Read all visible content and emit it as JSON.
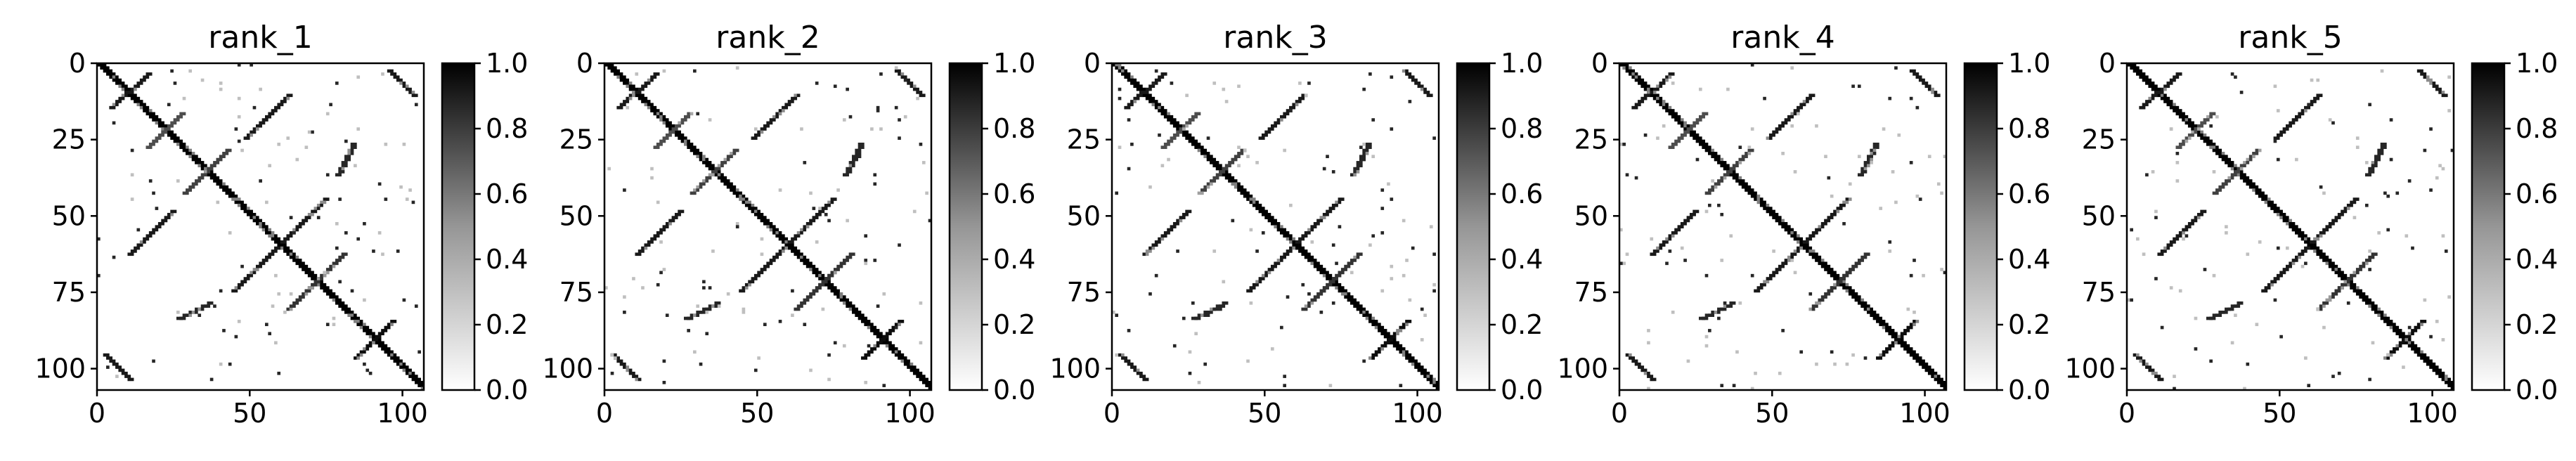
{
  "chart_data": [
    {
      "type": "heatmap",
      "title": "rank_1",
      "matrix_size": 107,
      "xlim": [
        0,
        107
      ],
      "ylim": [
        107,
        0
      ],
      "xticks": [
        0,
        50,
        100
      ],
      "yticks": [
        0,
        25,
        50,
        75,
        100
      ],
      "colorbar": {
        "min": 0.0,
        "max": 1.0,
        "ticks": [
          "0.0",
          "0.2",
          "0.4",
          "0.6",
          "0.8",
          "1.0"
        ],
        "colormap": "Greys"
      },
      "contact_bands": [
        {
          "from": [
            0,
            0
          ],
          "to": [
            106,
            106
          ],
          "value": 1.0
        },
        {
          "from": [
            3,
            16
          ],
          "to": [
            14,
            4
          ],
          "value": 0.9
        },
        {
          "from": [
            16,
            27
          ],
          "to": [
            27,
            16
          ],
          "value": 0.7
        },
        {
          "from": [
            28,
            42
          ],
          "to": [
            42,
            28
          ],
          "value": 0.75
        },
        {
          "from": [
            2,
            95
          ],
          "to": [
            10,
            103
          ],
          "value": 0.9
        },
        {
          "from": [
            10,
            62
          ],
          "to": [
            24,
            48
          ],
          "value": 0.9
        },
        {
          "from": [
            44,
            74
          ],
          "to": [
            58,
            60
          ],
          "value": 0.9
        },
        {
          "from": [
            62,
            80
          ],
          "to": [
            74,
            68
          ],
          "value": 0.8
        },
        {
          "from": [
            26,
            83
          ],
          "to": [
            36,
            78
          ],
          "value": 0.85
        },
        {
          "from": [
            84,
            96
          ],
          "to": [
            96,
            84
          ],
          "value": 0.95
        },
        {
          "from": [
            60,
            104
          ],
          "to": [
            106,
            92
          ],
          "value": 0.0
        },
        {
          "from": [
            95,
            2
          ],
          "to": [
            103,
            10
          ],
          "value": 0.9
        },
        {
          "from": [
            62,
            10
          ],
          "to": [
            48,
            24
          ],
          "value": 0.9
        },
        {
          "from": [
            74,
            44
          ],
          "to": [
            60,
            58
          ],
          "value": 0.9
        },
        {
          "from": [
            80,
            62
          ],
          "to": [
            68,
            74
          ],
          "value": 0.8
        },
        {
          "from": [
            83,
            26
          ],
          "to": [
            78,
            36
          ],
          "value": 0.85
        },
        {
          "from": [
            90,
            72
          ],
          "to": [
            106,
            88
          ],
          "value": 0.0
        }
      ]
    },
    {
      "type": "heatmap",
      "title": "rank_2",
      "matrix_size": 107,
      "xlim": [
        0,
        107
      ],
      "ylim": [
        107,
        0
      ],
      "xticks": [
        0,
        50,
        100
      ],
      "yticks": [
        0,
        25,
        50,
        75,
        100
      ],
      "colorbar": {
        "min": 0.0,
        "max": 1.0,
        "ticks": [
          "0.0",
          "0.2",
          "0.4",
          "0.6",
          "0.8",
          "1.0"
        ],
        "colormap": "Greys"
      }
    },
    {
      "type": "heatmap",
      "title": "rank_3",
      "matrix_size": 107,
      "xlim": [
        0,
        107
      ],
      "ylim": [
        107,
        0
      ],
      "xticks": [
        0,
        50,
        100
      ],
      "yticks": [
        0,
        25,
        50,
        75,
        100
      ],
      "colorbar": {
        "min": 0.0,
        "max": 1.0,
        "ticks": [
          "0.0",
          "0.2",
          "0.4",
          "0.6",
          "0.8",
          "1.0"
        ],
        "colormap": "Greys"
      }
    },
    {
      "type": "heatmap",
      "title": "rank_4",
      "matrix_size": 107,
      "xlim": [
        0,
        107
      ],
      "ylim": [
        107,
        0
      ],
      "xticks": [
        0,
        50,
        100
      ],
      "yticks": [
        0,
        25,
        50,
        75,
        100
      ],
      "colorbar": {
        "min": 0.0,
        "max": 1.0,
        "ticks": [
          "0.0",
          "0.2",
          "0.4",
          "0.6",
          "0.8",
          "1.0"
        ],
        "colormap": "Greys"
      }
    },
    {
      "type": "heatmap",
      "title": "rank_5",
      "matrix_size": 107,
      "xlim": [
        0,
        107
      ],
      "ylim": [
        107,
        0
      ],
      "xticks": [
        0,
        50,
        100
      ],
      "yticks": [
        0,
        25,
        50,
        75,
        100
      ],
      "colorbar": {
        "min": 0.0,
        "max": 1.0,
        "ticks": [
          "0.0",
          "0.2",
          "0.4",
          "0.6",
          "0.8",
          "1.0"
        ],
        "colormap": "Greys"
      }
    }
  ]
}
